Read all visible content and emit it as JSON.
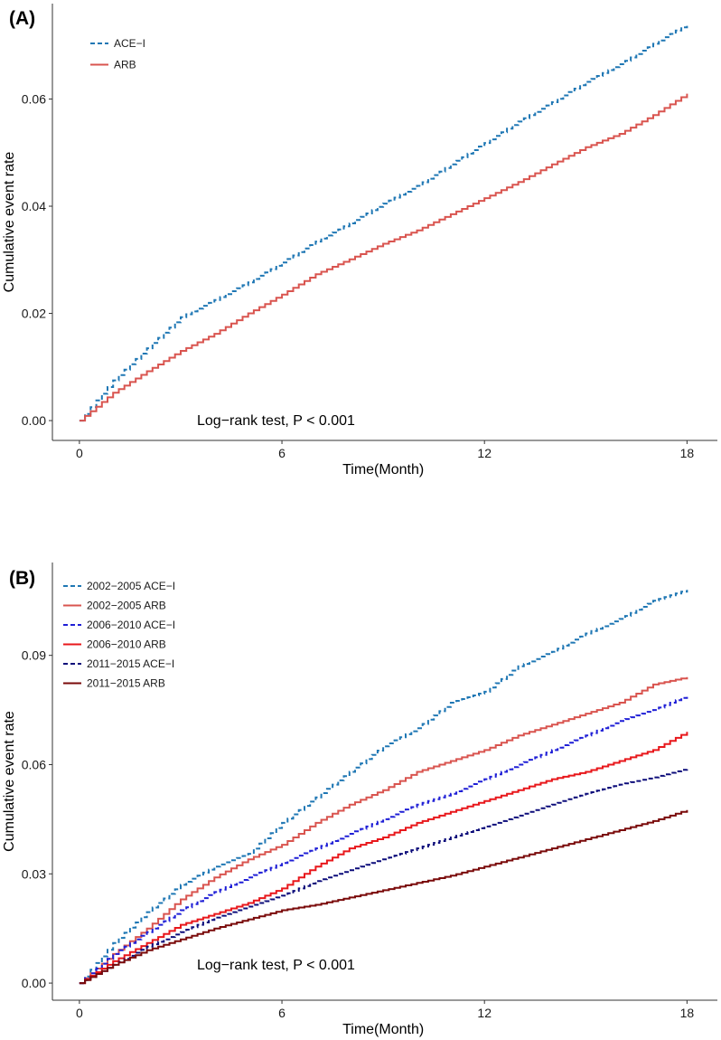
{
  "chart_data": [
    {
      "panel": "A",
      "type": "line",
      "panel_label": "(A)",
      "xlabel": "Time(Month)",
      "ylabel": "Cumulative event rate",
      "xlim": [
        -0.8,
        18.9
      ],
      "ylim": [
        -0.0037,
        0.0778
      ],
      "x_ticks": [
        0,
        6,
        12,
        18
      ],
      "x_tick_labels": [
        "0",
        "6",
        "12",
        "18"
      ],
      "y_ticks": [
        0,
        0.02,
        0.04,
        0.06
      ],
      "y_tick_labels": [
        "0.00",
        "0.02",
        "0.04",
        "0.06"
      ],
      "grid": false,
      "legend_position": "top-left",
      "annotation": "Log−rank test, P < 0.001",
      "series": [
        {
          "name": "ACE−I",
          "color": "#1f77b4",
          "dash": "dashed",
          "x": [
            0,
            1,
            2,
            3,
            4,
            5,
            6,
            7,
            8,
            9,
            10,
            11,
            12,
            13,
            14,
            15,
            16,
            17,
            18
          ],
          "y": [
            0,
            0.0075,
            0.0135,
            0.0193,
            0.0225,
            0.0258,
            0.0295,
            0.0334,
            0.0368,
            0.0405,
            0.0438,
            0.0478,
            0.0518,
            0.0558,
            0.0594,
            0.0632,
            0.0665,
            0.0703,
            0.074
          ]
        },
        {
          "name": "ARB",
          "color": "#d9544f",
          "dash": "solid",
          "x": [
            0,
            1,
            2,
            3,
            4,
            5,
            6,
            7,
            8,
            9,
            10,
            11,
            12,
            13,
            14,
            15,
            16,
            17,
            18
          ],
          "y": [
            0,
            0.0052,
            0.0092,
            0.013,
            0.0162,
            0.02,
            0.0235,
            0.0273,
            0.0301,
            0.033,
            0.0355,
            0.0385,
            0.0415,
            0.0445,
            0.0478,
            0.051,
            0.0535,
            0.057,
            0.061
          ]
        }
      ]
    },
    {
      "panel": "B",
      "type": "line",
      "panel_label": "(B)",
      "xlabel": "Time(Month)",
      "ylabel": "Cumulative event rate",
      "xlim": [
        -0.8,
        18.9
      ],
      "ylim": [
        -0.0047,
        0.1155
      ],
      "x_ticks": [
        0,
        6,
        12,
        18
      ],
      "x_tick_labels": [
        "0",
        "6",
        "12",
        "18"
      ],
      "y_ticks": [
        0,
        0.03,
        0.06,
        0.09
      ],
      "y_tick_labels": [
        "0.00",
        "0.03",
        "0.06",
        "0.09"
      ],
      "grid": false,
      "legend_position": "top-left",
      "annotation": "Log−rank test, P < 0.001",
      "series": [
        {
          "name": "2002−2005 ACE−I",
          "color": "#1f77b4",
          "dash": "dashed",
          "x": [
            0,
            1,
            2,
            3,
            4,
            5,
            6,
            7,
            8,
            9,
            10,
            11,
            12,
            13,
            14,
            15,
            16,
            17,
            18
          ],
          "y": [
            0,
            0.011,
            0.0195,
            0.027,
            0.032,
            0.0355,
            0.044,
            0.051,
            0.058,
            0.065,
            0.07,
            0.077,
            0.08,
            0.087,
            0.091,
            0.096,
            0.1,
            0.105,
            0.108
          ]
        },
        {
          "name": "2002−2005 ARB",
          "color": "#d9544f",
          "dash": "solid",
          "x": [
            0,
            1,
            2,
            3,
            4,
            5,
            6,
            7,
            8,
            9,
            10,
            11,
            12,
            13,
            14,
            15,
            16,
            17,
            18
          ],
          "y": [
            0,
            0.008,
            0.015,
            0.023,
            0.029,
            0.034,
            0.038,
            0.044,
            0.049,
            0.053,
            0.058,
            0.061,
            0.064,
            0.068,
            0.071,
            0.074,
            0.077,
            0.082,
            0.084
          ]
        },
        {
          "name": "2006−2010 ACE−I",
          "color": "#1f1fd6",
          "dash": "dashed",
          "x": [
            0,
            1,
            2,
            3,
            4,
            5,
            6,
            7,
            8,
            9,
            10,
            11,
            12,
            13,
            14,
            15,
            16,
            17,
            18
          ],
          "y": [
            0,
            0.008,
            0.014,
            0.02,
            0.025,
            0.029,
            0.033,
            0.037,
            0.041,
            0.045,
            0.049,
            0.052,
            0.056,
            0.06,
            0.064,
            0.068,
            0.072,
            0.075,
            0.079
          ]
        },
        {
          "name": "2006−2010 ARB",
          "color": "#e8171b",
          "dash": "solid",
          "x": [
            0,
            1,
            2,
            3,
            4,
            5,
            6,
            7,
            8,
            9,
            10,
            11,
            12,
            13,
            14,
            15,
            16,
            17,
            18
          ],
          "y": [
            0,
            0.006,
            0.011,
            0.016,
            0.019,
            0.022,
            0.026,
            0.032,
            0.037,
            0.04,
            0.044,
            0.047,
            0.05,
            0.053,
            0.056,
            0.058,
            0.061,
            0.064,
            0.069
          ]
        },
        {
          "name": "2011−2015 ACE−I",
          "color": "#0c0c7a",
          "dash": "dashed",
          "x": [
            0,
            1,
            2,
            3,
            4,
            5,
            6,
            7,
            8,
            9,
            10,
            11,
            12,
            13,
            14,
            15,
            16,
            17,
            18
          ],
          "y": [
            0,
            0.005,
            0.01,
            0.014,
            0.018,
            0.021,
            0.024,
            0.028,
            0.031,
            0.034,
            0.037,
            0.04,
            0.043,
            0.046,
            0.049,
            0.052,
            0.0545,
            0.0565,
            0.059
          ]
        },
        {
          "name": "2011−2015 ARB",
          "color": "#7a0a0a",
          "dash": "solid",
          "x": [
            0,
            1,
            2,
            3,
            4,
            5,
            6,
            7,
            8,
            9,
            10,
            11,
            12,
            13,
            14,
            15,
            16,
            17,
            18
          ],
          "y": [
            0,
            0.005,
            0.009,
            0.012,
            0.015,
            0.0175,
            0.02,
            0.0215,
            0.0235,
            0.0255,
            0.0275,
            0.0295,
            0.032,
            0.0345,
            0.037,
            0.0395,
            0.042,
            0.0445,
            0.0475
          ]
        }
      ]
    }
  ]
}
